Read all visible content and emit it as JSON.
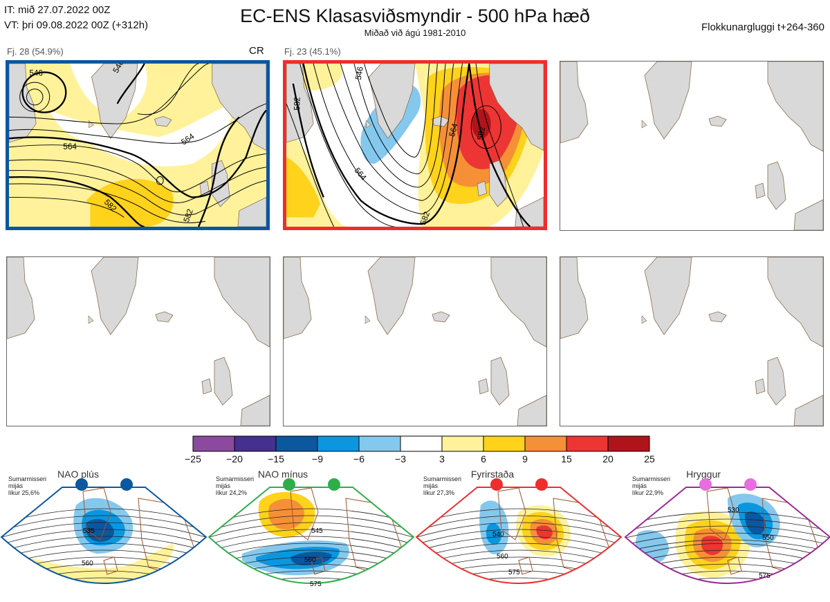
{
  "header": {
    "init_line": "IT: mið 27.07.2022 00Z",
    "valid_line": "VT: þri 09.08.2022 00Z  (+312h)",
    "title": "EC-ENS Klasasviðsmyndir - 500 hPa hæð",
    "subtitle": "Miðað við ágú 1981-2010",
    "window": "Flokkunargluggi t+264-360"
  },
  "clusters": [
    {
      "label": "Fj. 28 (54.9%)",
      "tag": "CR",
      "frame_color": "#0b57a0",
      "contour_labels": [
        "546",
        "546",
        "564",
        "564",
        "582",
        "582"
      ]
    },
    {
      "label": "Fj. 23 (45.1%)",
      "tag": "",
      "frame_color": "#ee2d2d",
      "contour_labels": [
        "582",
        "546",
        "564",
        "564",
        "582",
        "582"
      ]
    }
  ],
  "colorbar": {
    "ticks": [
      "−25",
      "−20",
      "−15",
      "−9",
      "−6",
      "−3",
      "3",
      "6",
      "9",
      "15",
      "20",
      "25"
    ],
    "colors": [
      "#8c4a9e",
      "#45308f",
      "#0b57a0",
      "#0a97df",
      "#85c8ee",
      "#ffffff",
      "#fff29a",
      "#ffd21b",
      "#f59037",
      "#ed3534",
      "#b0141a"
    ]
  },
  "regimes": [
    {
      "name": "NAO plús",
      "season": "Sumarmisseri",
      "freq_label": "mijás",
      "prob": "líkur 25,6%",
      "color": "#0b57a0",
      "labels": [
        "535",
        "560"
      ]
    },
    {
      "name": "NAO mínus",
      "season": "Sumarmisseri",
      "freq_label": "mijás",
      "prob": "líkur 24,2%",
      "color": "#2eae4a",
      "labels": [
        "545",
        "560",
        "575"
      ]
    },
    {
      "name": "Fyrirstaða",
      "season": "Sumarmisseri",
      "freq_label": "mijás",
      "prob": "líkur 27,3%",
      "color": "#ee2d2d",
      "labels": [
        "540",
        "560",
        "575"
      ]
    },
    {
      "name": "Hryggur",
      "season": "Sumarmisseri",
      "freq_label": "mijás",
      "prob": "líkur 22,9%",
      "color": "#9a2a96",
      "labels": [
        "530",
        "550",
        "575"
      ]
    }
  ]
}
